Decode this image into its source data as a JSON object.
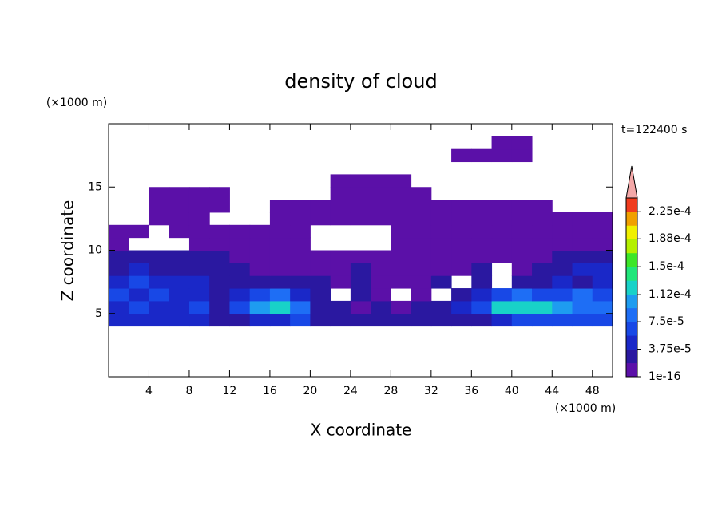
{
  "chart_data": {
    "type": "contour",
    "title": "density of cloud",
    "annotation": "t=122400 s",
    "x_label": "X coordinate",
    "y_label": "Z coordinate",
    "x_unit": "(×1000 m)",
    "y_unit": "(×1000 m)",
    "xlim": [
      0,
      50
    ],
    "ylim": [
      0,
      20
    ],
    "xticks": [
      4,
      8,
      12,
      16,
      20,
      24,
      28,
      32,
      36,
      40,
      44,
      48
    ],
    "yticks": [
      5,
      10,
      15
    ],
    "x": [
      1,
      3,
      5,
      7,
      9,
      11,
      13,
      15,
      17,
      19,
      21,
      23,
      25,
      27,
      29,
      31,
      33,
      35,
      37,
      39,
      41,
      43,
      45,
      47,
      49
    ],
    "z": [
      4.5,
      5.5,
      6.5,
      7.5,
      8.5,
      9.5,
      10.5,
      11.5,
      12.5,
      13.5,
      14.5,
      15.5,
      16.5,
      17.5,
      18.5
    ],
    "values": [
      [
        4e-05,
        4e-05,
        4e-05,
        4e-05,
        4e-05,
        2e-05,
        2e-05,
        4e-05,
        4e-05,
        6e-05,
        2e-05,
        2e-05,
        2e-05,
        2e-05,
        2e-05,
        2e-05,
        2e-05,
        2e-05,
        2e-05,
        4e-05,
        6e-05,
        6e-05,
        6e-05,
        6e-05,
        6e-05
      ],
      [
        4e-05,
        6e-05,
        4e-05,
        4e-05,
        6e-05,
        2e-05,
        6e-05,
        0.0001,
        0.00012,
        8e-05,
        2e-05,
        2e-05,
        1e-06,
        2e-05,
        1e-06,
        2e-05,
        2e-05,
        4e-05,
        6e-05,
        0.00012,
        0.00012,
        0.00012,
        0.0001,
        8e-05,
        8e-05
      ],
      [
        6e-05,
        4e-05,
        6e-05,
        4e-05,
        4e-05,
        2e-05,
        4e-05,
        6e-05,
        8e-05,
        4e-05,
        2e-05,
        null,
        2e-05,
        1e-06,
        null,
        1e-06,
        null,
        2e-05,
        4e-05,
        6e-05,
        8e-05,
        6e-05,
        6e-05,
        8e-05,
        6e-05
      ],
      [
        4e-05,
        6e-05,
        4e-05,
        4e-05,
        4e-05,
        2e-05,
        2e-05,
        2e-05,
        2e-05,
        2e-05,
        2e-05,
        1e-06,
        2e-05,
        1e-06,
        1e-06,
        1e-06,
        2e-05,
        null,
        2e-05,
        null,
        2e-05,
        2e-05,
        4e-05,
        2e-05,
        4e-05
      ],
      [
        2e-05,
        4e-05,
        2e-05,
        2e-05,
        2e-05,
        2e-05,
        2e-05,
        1e-06,
        1e-06,
        1e-06,
        1e-06,
        1e-06,
        2e-05,
        1e-06,
        1e-06,
        1e-06,
        1e-06,
        1e-06,
        2e-05,
        null,
        1e-06,
        2e-05,
        2e-05,
        4e-05,
        4e-05
      ],
      [
        2e-05,
        2e-05,
        2e-05,
        2e-05,
        2e-05,
        2e-05,
        1e-06,
        1e-06,
        1e-06,
        1e-06,
        1e-06,
        1e-06,
        1e-06,
        1e-06,
        1e-06,
        1e-06,
        1e-06,
        1e-06,
        1e-06,
        1e-06,
        1e-06,
        1e-06,
        2e-05,
        2e-05,
        2e-05
      ],
      [
        1e-06,
        null,
        null,
        null,
        1e-06,
        1e-06,
        1e-06,
        1e-06,
        1e-06,
        1e-06,
        null,
        null,
        null,
        null,
        1e-06,
        1e-06,
        1e-06,
        1e-06,
        1e-06,
        1e-06,
        1e-06,
        1e-06,
        1e-06,
        1e-06,
        1e-06
      ],
      [
        1e-06,
        1e-06,
        null,
        1e-06,
        1e-06,
        1e-06,
        1e-06,
        1e-06,
        1e-06,
        1e-06,
        null,
        null,
        null,
        null,
        1e-06,
        1e-06,
        1e-06,
        1e-06,
        1e-06,
        1e-06,
        1e-06,
        1e-06,
        1e-06,
        1e-06,
        1e-06
      ],
      [
        null,
        null,
        1e-06,
        1e-06,
        1e-06,
        null,
        null,
        null,
        1e-06,
        1e-06,
        1e-06,
        1e-06,
        1e-06,
        1e-06,
        1e-06,
        1e-06,
        1e-06,
        1e-06,
        1e-06,
        1e-06,
        1e-06,
        1e-06,
        1e-06,
        1e-06,
        1e-06
      ],
      [
        null,
        null,
        1e-06,
        1e-06,
        1e-06,
        1e-06,
        null,
        null,
        1e-06,
        1e-06,
        1e-06,
        1e-06,
        1e-06,
        1e-06,
        1e-06,
        1e-06,
        1e-06,
        1e-06,
        1e-06,
        1e-06,
        1e-06,
        1e-06,
        null,
        null,
        null
      ],
      [
        null,
        null,
        1e-06,
        1e-06,
        1e-06,
        1e-06,
        null,
        null,
        null,
        null,
        null,
        1e-06,
        1e-06,
        1e-06,
        1e-06,
        1e-06,
        null,
        null,
        null,
        null,
        null,
        null,
        null,
        null,
        null
      ],
      [
        null,
        null,
        null,
        null,
        null,
        null,
        null,
        null,
        null,
        null,
        null,
        1e-06,
        1e-06,
        1e-06,
        1e-06,
        null,
        null,
        null,
        null,
        null,
        null,
        null,
        null,
        null,
        null
      ],
      [
        null,
        null,
        null,
        null,
        null,
        null,
        null,
        null,
        null,
        null,
        null,
        null,
        null,
        null,
        null,
        null,
        null,
        null,
        null,
        null,
        null,
        null,
        null,
        null,
        null
      ],
      [
        null,
        null,
        null,
        null,
        null,
        null,
        null,
        null,
        null,
        null,
        null,
        null,
        null,
        null,
        null,
        null,
        null,
        1e-06,
        1e-06,
        1e-06,
        1e-06,
        null,
        null,
        null,
        null
      ],
      [
        null,
        null,
        null,
        null,
        null,
        null,
        null,
        null,
        null,
        null,
        null,
        null,
        null,
        null,
        null,
        null,
        null,
        null,
        null,
        1e-06,
        1e-06,
        null,
        null,
        null,
        null
      ]
    ],
    "colorbar": {
      "lim": [
        1e-16,
        0.00024375
      ],
      "ticks": [
        1e-16,
        {
          "value": 3.75e-05,
          "label": "3.75e-5"
        },
        {
          "value": 7.5e-05,
          "label": "7.5e-5"
        },
        {
          "value": 0.000112,
          "label": "1.12e-4"
        },
        {
          "value": 0.00015,
          "label": "1.5e-4"
        },
        {
          "value": 0.000188,
          "label": "1.88e-4"
        },
        {
          "value": 0.000225,
          "label": "2.25e-4"
        }
      ],
      "colors": [
        "#5b10a8",
        "#2a18a0",
        "#1a28c8",
        "#1848e6",
        "#1e6ef5",
        "#1e9cf0",
        "#18d2c8",
        "#20e67a",
        "#3ce628",
        "#b4f000",
        "#f0f000",
        "#f0a000",
        "#f03c1e"
      ],
      "over_color": "#f4a8a8"
    }
  }
}
